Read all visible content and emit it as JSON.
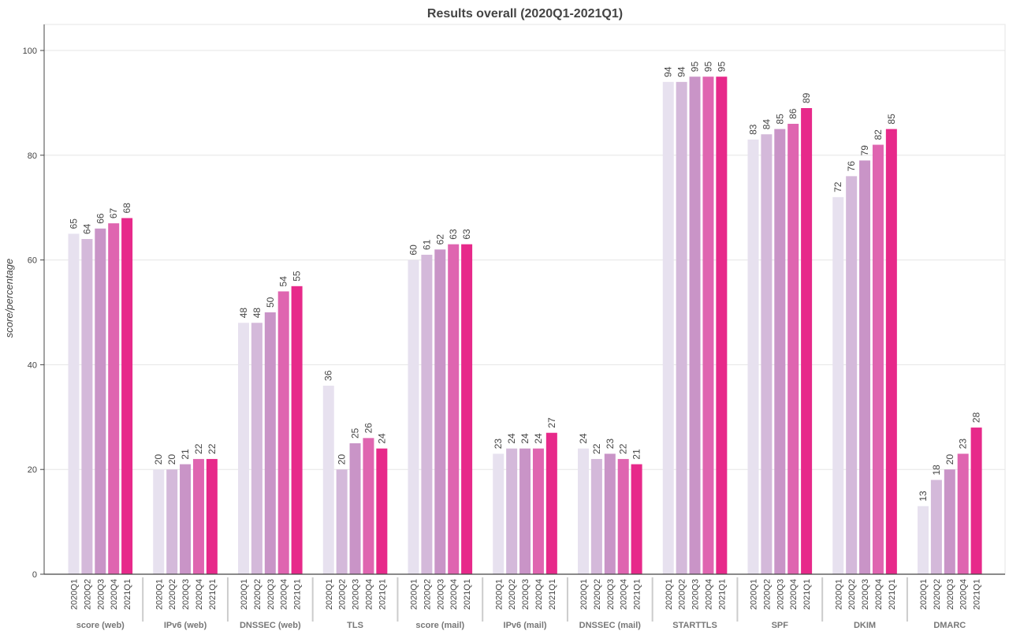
{
  "chart_data": {
    "type": "bar",
    "title": "Results overall (2020Q1-2021Q1)",
    "xlabel": "",
    "ylabel": "score/percentage",
    "ylim": [
      0,
      105
    ],
    "yticks": [
      0,
      20,
      40,
      60,
      80,
      100
    ],
    "grid": true,
    "legend": "none",
    "groups": [
      "score (web)",
      "IPv6 (web)",
      "DNSSEC (web)",
      "TLS",
      "score (mail)",
      "IPv6 (mail)",
      "DNSSEC (mail)",
      "STARTTLS",
      "SPF",
      "DKIM",
      "DMARC"
    ],
    "subcategories": [
      "2020Q1",
      "2020Q2",
      "2020Q3",
      "2020Q4",
      "2021Q1"
    ],
    "colors": [
      "#e7e1ef",
      "#d4b9da",
      "#c994c7",
      "#df65b0",
      "#e7298a"
    ],
    "series": [
      {
        "values": [
          65,
          20,
          48,
          36,
          60,
          23,
          24,
          94,
          83,
          72,
          13
        ]
      },
      {
        "values": [
          64,
          20,
          48,
          20,
          61,
          24,
          22,
          94,
          84,
          76,
          18
        ]
      },
      {
        "values": [
          66,
          21,
          50,
          25,
          62,
          24,
          23,
          95,
          85,
          79,
          20
        ]
      },
      {
        "values": [
          67,
          22,
          54,
          26,
          63,
          24,
          22,
          95,
          86,
          82,
          23
        ]
      },
      {
        "values": [
          68,
          22,
          55,
          24,
          63,
          27,
          21,
          95,
          89,
          85,
          28
        ]
      }
    ]
  }
}
